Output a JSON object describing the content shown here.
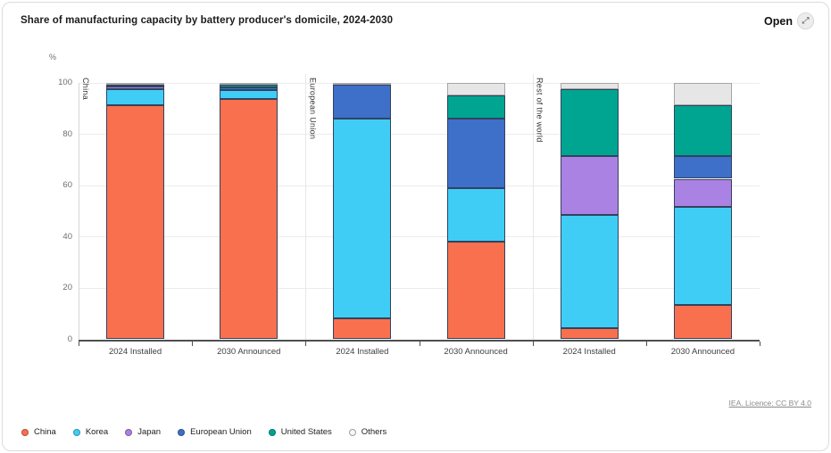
{
  "header": {
    "title": "Share of manufacturing capacity by battery producer's domicile, 2024-2030",
    "open_label": "Open",
    "open_icon_glyph": "⤢"
  },
  "attribution": {
    "licence_text": "IEA. Licence: CC BY 4.0"
  },
  "chart_data": {
    "type": "bar",
    "stacked": true,
    "title": "Share of manufacturing capacity by battery producer's domicile, 2024-2030",
    "unit_label": "%",
    "ylim": [
      0,
      100
    ],
    "yticks": [
      0,
      20,
      40,
      60,
      80,
      100
    ],
    "grid": true,
    "legend_position": "bottom",
    "groups": [
      "China",
      "European Union",
      "Rest of the world"
    ],
    "categories": [
      "2024 Installed",
      "2030 Announced",
      "2024 Installed",
      "2030 Announced",
      "2024 Installed",
      "2030 Announced"
    ],
    "series": [
      {
        "name": "China",
        "color": "#f9704e",
        "border": "#32425e",
        "values": [
          91,
          93.5,
          8,
          38,
          4.5,
          13.5
        ]
      },
      {
        "name": "Korea",
        "color": "#3fcdf6",
        "border": "#32425e",
        "values": [
          6.5,
          3.5,
          78,
          21,
          44,
          38
        ]
      },
      {
        "name": "Japan",
        "color": "#aa82e3",
        "border": "#32425e",
        "values": [
          1,
          0,
          0,
          0,
          23,
          11
        ]
      },
      {
        "name": "European Union",
        "color": "#3e6fc9",
        "border": "#32425e",
        "values": [
          0.5,
          1,
          13,
          27,
          0,
          9
        ]
      },
      {
        "name": "United States",
        "color": "#00a591",
        "border": "#32425e",
        "values": [
          0,
          1,
          0,
          9,
          26,
          19.5
        ]
      },
      {
        "name": "Others",
        "color": "#e6e6e6",
        "border": "#a6a6a6",
        "values": [
          1,
          1,
          1,
          5,
          2.5,
          9
        ]
      }
    ],
    "legend_marker_others_fill": "#f7f7f7",
    "legend_marker_others_ring": "#9e9e9e"
  }
}
